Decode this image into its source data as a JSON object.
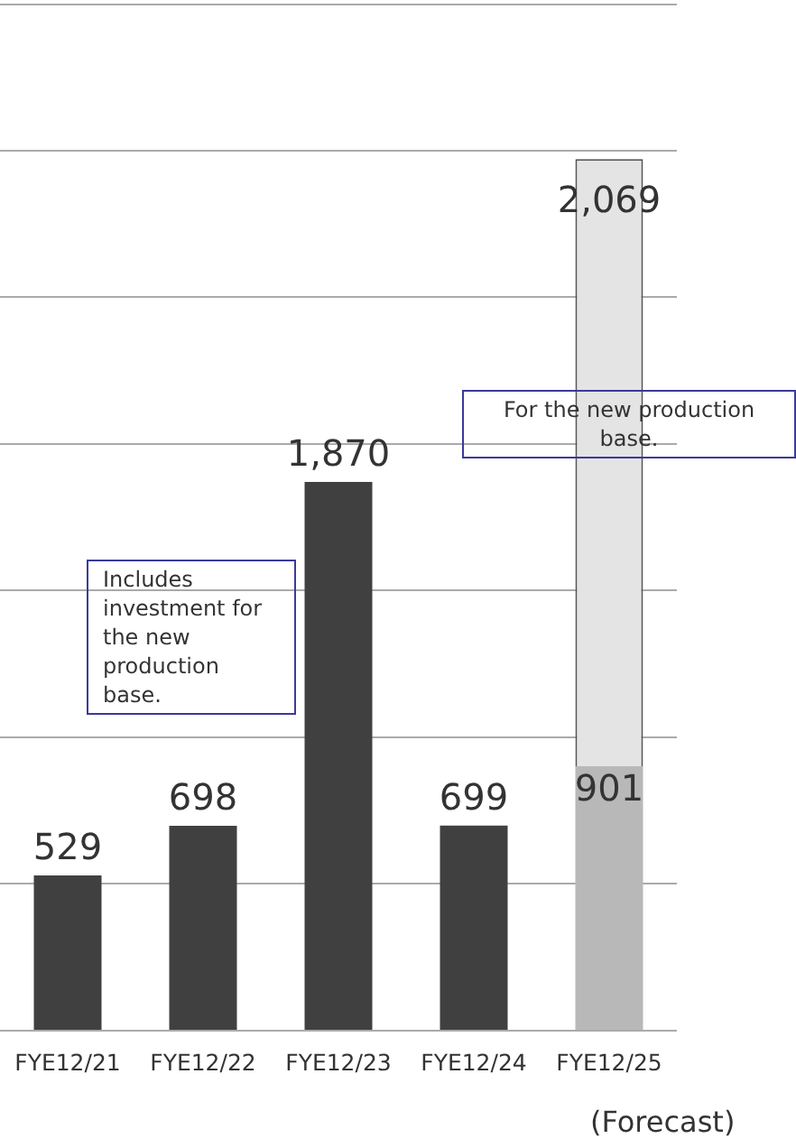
{
  "chart_data": {
    "type": "bar",
    "stacked": true,
    "categories": [
      "FYE12/21",
      "FYE12/22",
      "FYE12/23",
      "FYE12/24",
      "FYE12/25"
    ],
    "series": [
      {
        "colors": [
          "#404040",
          "#404040",
          "#404040",
          "#404040",
          "#b8b8b8"
        ],
        "values": [
          529,
          698,
          1870,
          699,
          901
        ],
        "value_labels": [
          "529",
          "698",
          "1,870",
          "699",
          "901"
        ]
      },
      {
        "color": "#e4e4e4",
        "values": [
          null,
          null,
          null,
          null,
          2069
        ],
        "value_labels": [
          null,
          null,
          null,
          null,
          "2,069"
        ]
      }
    ],
    "ylim": [
      0,
      3500
    ],
    "yticks": [
      {
        "value": 0,
        "label": null
      },
      {
        "value": 500,
        "label": null
      },
      {
        "value": 1000,
        "label": null
      },
      {
        "value": 1500,
        "label": null
      },
      {
        "value": 2000,
        "label": null
      },
      {
        "value": 2500,
        "label": null
      },
      {
        "value": 3000,
        "label": null
      }
    ],
    "grid": "y",
    "tick_labels": "x",
    "legend": false,
    "annotations": [
      "Includes investment for the new production base.",
      "For the new production base.",
      "(Forecast)"
    ]
  }
}
